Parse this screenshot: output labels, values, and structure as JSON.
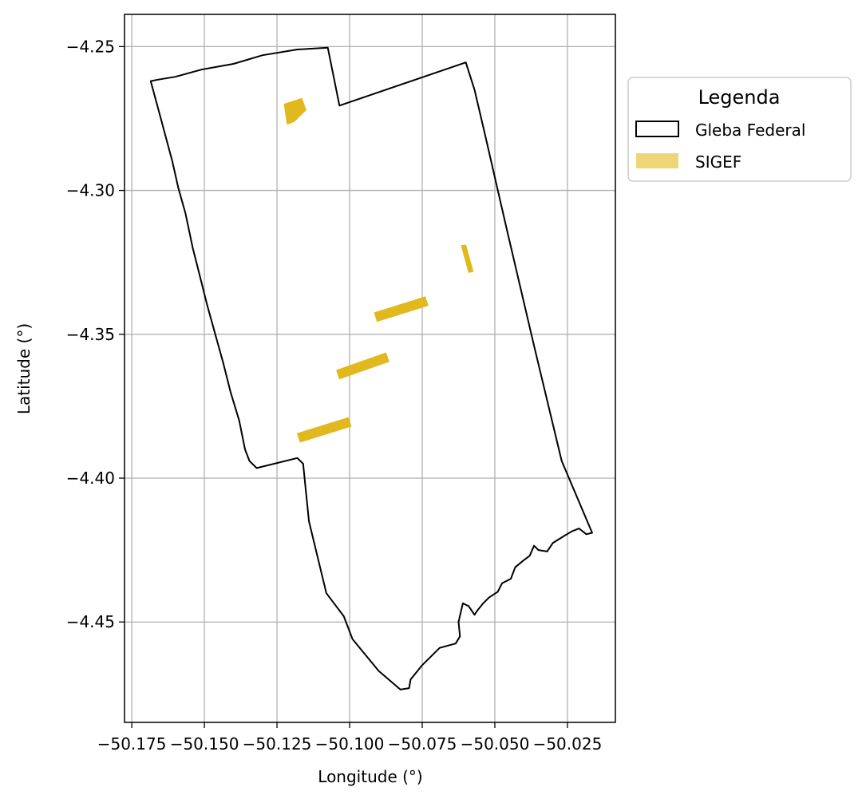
{
  "chart_data": {
    "type": "map",
    "xlabel": "Longitude (°)",
    "ylabel": "Latitude (°)",
    "xlim": [
      -50.1775,
      -50.0085
    ],
    "ylim": [
      -4.4849,
      -4.2388
    ],
    "grid": true,
    "x_ticks": [
      {
        "value": -50.175,
        "label": "−50.175"
      },
      {
        "value": -50.15,
        "label": "−50.150"
      },
      {
        "value": -50.125,
        "label": "−50.125"
      },
      {
        "value": -50.1,
        "label": "−50.100"
      },
      {
        "value": -50.075,
        "label": "−50.075"
      },
      {
        "value": -50.05,
        "label": "−50.050"
      },
      {
        "value": -50.025,
        "label": "−50.025"
      }
    ],
    "y_ticks": [
      {
        "value": -4.25,
        "label": "−4.25"
      },
      {
        "value": -4.3,
        "label": "−4.30"
      },
      {
        "value": -4.35,
        "label": "−4.35"
      },
      {
        "value": -4.4,
        "label": "−4.40"
      },
      {
        "value": -4.45,
        "label": "−4.45"
      }
    ],
    "legend": {
      "title": "Legenda",
      "placement": "outside upper right",
      "entries": [
        "Gleba Federal",
        "SIGEF"
      ]
    },
    "colors": {
      "gleba_edge": "#000000",
      "sigef_fill": "#e1b91e",
      "grid": "#b0b0b0"
    },
    "gleba_federal": [
      [
        -50.1075,
        -4.2504
      ],
      [
        -50.1035,
        -4.2705
      ],
      [
        -50.06,
        -4.2555
      ],
      [
        -50.057,
        -4.265
      ],
      [
        -50.0535,
        -4.28
      ],
      [
        -50.046,
        -4.313
      ],
      [
        -50.0365,
        -4.354
      ],
      [
        -50.027,
        -4.394
      ],
      [
        -50.0165,
        -4.419
      ],
      [
        -50.0185,
        -4.4195
      ],
      [
        -50.021,
        -4.4175
      ],
      [
        -50.0235,
        -4.4185
      ],
      [
        -50.026,
        -4.42
      ],
      [
        -50.03,
        -4.4225
      ],
      [
        -50.032,
        -4.4255
      ],
      [
        -50.035,
        -4.425
      ],
      [
        -50.0365,
        -4.4235
      ],
      [
        -50.038,
        -4.427
      ],
      [
        -50.04,
        -4.4285
      ],
      [
        -50.043,
        -4.431
      ],
      [
        -50.0445,
        -4.435
      ],
      [
        -50.0475,
        -4.4365
      ],
      [
        -50.049,
        -4.4395
      ],
      [
        -50.052,
        -4.4415
      ],
      [
        -50.054,
        -4.4435
      ],
      [
        -50.056,
        -4.446
      ],
      [
        -50.057,
        -4.4475
      ],
      [
        -50.059,
        -4.4445
      ],
      [
        -50.061,
        -4.4435
      ],
      [
        -50.0625,
        -4.45
      ],
      [
        -50.062,
        -4.455
      ],
      [
        -50.0635,
        -4.4575
      ],
      [
        -50.069,
        -4.459
      ],
      [
        -50.075,
        -4.465
      ],
      [
        -50.079,
        -4.47
      ],
      [
        -50.0795,
        -4.473
      ],
      [
        -50.0825,
        -4.4735
      ],
      [
        -50.09,
        -4.467
      ],
      [
        -50.099,
        -4.456
      ],
      [
        -50.102,
        -4.448
      ],
      [
        -50.108,
        -4.44
      ],
      [
        -50.114,
        -4.415
      ],
      [
        -50.115,
        -4.405
      ],
      [
        -50.116,
        -4.395
      ],
      [
        -50.118,
        -4.393
      ],
      [
        -50.132,
        -4.3965
      ],
      [
        -50.1345,
        -4.394
      ],
      [
        -50.136,
        -4.39
      ],
      [
        -50.138,
        -4.38
      ],
      [
        -50.141,
        -4.37
      ],
      [
        -50.1435,
        -4.36
      ],
      [
        -50.149,
        -4.34
      ],
      [
        -50.153,
        -4.324
      ],
      [
        -50.154,
        -4.32
      ],
      [
        -50.1565,
        -4.308
      ],
      [
        -50.159,
        -4.299
      ],
      [
        -50.161,
        -4.29
      ],
      [
        -50.165,
        -4.275
      ],
      [
        -50.1685,
        -4.262
      ],
      [
        -50.166,
        -4.2615
      ],
      [
        -50.16,
        -4.2605
      ],
      [
        -50.151,
        -4.258
      ],
      [
        -50.14,
        -4.256
      ],
      [
        -50.13,
        -4.253
      ],
      [
        -50.118,
        -4.251
      ],
      [
        -50.1075,
        -4.2504
      ]
    ],
    "sigef": [
      [
        [
          -50.1225,
          -4.27
        ],
        [
          -50.1165,
          -4.268
        ],
        [
          -50.115,
          -4.272
        ],
        [
          -50.119,
          -4.276
        ],
        [
          -50.1215,
          -4.277
        ]
      ],
      [
        [
          -50.0615,
          -4.3192
        ],
        [
          -50.06,
          -4.319
        ],
        [
          -50.0575,
          -4.3282
        ],
        [
          -50.059,
          -4.3285
        ]
      ],
      [
        [
          -50.0915,
          -4.3425
        ],
        [
          -50.074,
          -4.337
        ],
        [
          -50.073,
          -4.34
        ],
        [
          -50.0905,
          -4.3455
        ]
      ],
      [
        [
          -50.1045,
          -4.3625
        ],
        [
          -50.0875,
          -4.3565
        ],
        [
          -50.0865,
          -4.3595
        ],
        [
          -50.1035,
          -4.3655
        ]
      ],
      [
        [
          -50.118,
          -4.3845
        ],
        [
          -50.1005,
          -4.379
        ],
        [
          -50.0995,
          -4.382
        ],
        [
          -50.117,
          -4.3875
        ]
      ]
    ]
  }
}
